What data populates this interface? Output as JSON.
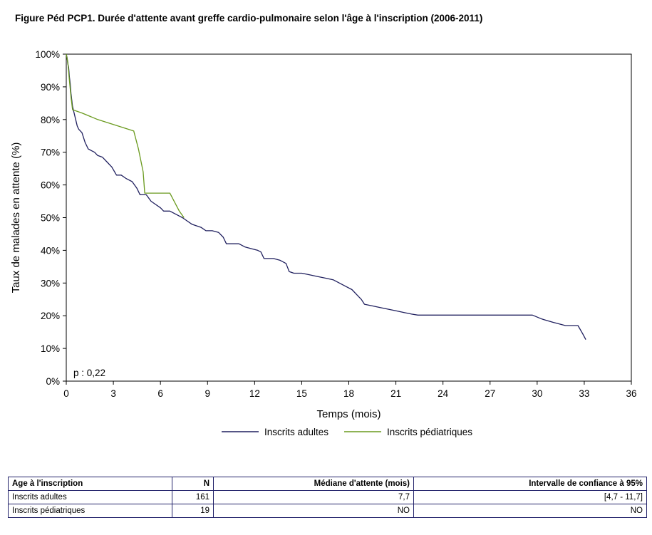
{
  "figure_title": "Figure Péd PCP1. Durée d'attente avant greffe cardio-pulmonaire selon l'âge à l'inscription (2006-2011)",
  "colors": {
    "adults": "#1f1f5e",
    "pediatric": "#6a9a1e",
    "axis": "#000000",
    "table_border": "#22226a"
  },
  "chart_data": {
    "type": "line",
    "title": "",
    "xlabel": "Temps (mois)",
    "ylabel": "Taux de malades en attente (%)",
    "xlim": [
      0,
      36
    ],
    "ylim": [
      0,
      100
    ],
    "x_ticks": [
      0,
      3,
      6,
      9,
      12,
      15,
      18,
      21,
      24,
      27,
      30,
      33,
      36
    ],
    "y_ticks": [
      0,
      10,
      20,
      30,
      40,
      50,
      60,
      70,
      80,
      90,
      100
    ],
    "y_tick_labels": [
      "0%",
      "10%",
      "20%",
      "30%",
      "40%",
      "50%",
      "60%",
      "70%",
      "80%",
      "90%",
      "100%"
    ],
    "annotation": "p : 0,22",
    "legend_position": "bottom",
    "grid": false,
    "series": [
      {
        "name": "Inscrits adultes",
        "points": [
          [
            0,
            100
          ],
          [
            0.05,
            99
          ],
          [
            0.1,
            97
          ],
          [
            0.15,
            96
          ],
          [
            0.2,
            93
          ],
          [
            0.25,
            91
          ],
          [
            0.3,
            88
          ],
          [
            0.35,
            86
          ],
          [
            0.4,
            84
          ],
          [
            0.5,
            82
          ],
          [
            0.6,
            80
          ],
          [
            0.7,
            78
          ],
          [
            0.8,
            77
          ],
          [
            1.0,
            76
          ],
          [
            1.2,
            73
          ],
          [
            1.4,
            71
          ],
          [
            1.6,
            70.5
          ],
          [
            1.8,
            70
          ],
          [
            2.0,
            69
          ],
          [
            2.3,
            68.5
          ],
          [
            2.6,
            67
          ],
          [
            2.9,
            65.5
          ],
          [
            3.2,
            63
          ],
          [
            3.5,
            63
          ],
          [
            3.8,
            62
          ],
          [
            4.2,
            61
          ],
          [
            4.5,
            59
          ],
          [
            4.7,
            57
          ],
          [
            5.1,
            57
          ],
          [
            5.4,
            55
          ],
          [
            5.7,
            54
          ],
          [
            6.0,
            53
          ],
          [
            6.2,
            52
          ],
          [
            6.6,
            52
          ],
          [
            7.0,
            51
          ],
          [
            7.4,
            50
          ],
          [
            7.7,
            49
          ],
          [
            8.0,
            48
          ],
          [
            8.3,
            47.5
          ],
          [
            8.6,
            47
          ],
          [
            8.9,
            46
          ],
          [
            9.3,
            46
          ],
          [
            9.7,
            45.5
          ],
          [
            10.0,
            44
          ],
          [
            10.2,
            42
          ],
          [
            10.6,
            42
          ],
          [
            11.0,
            42
          ],
          [
            11.4,
            41
          ],
          [
            11.8,
            40.5
          ],
          [
            12.2,
            40
          ],
          [
            12.4,
            39.5
          ],
          [
            12.6,
            37.5
          ],
          [
            13.2,
            37.5
          ],
          [
            13.6,
            37
          ],
          [
            14.0,
            36
          ],
          [
            14.2,
            33.5
          ],
          [
            14.5,
            33
          ],
          [
            15.0,
            33
          ],
          [
            15.5,
            32.5
          ],
          [
            16.0,
            32
          ],
          [
            16.5,
            31.5
          ],
          [
            17.0,
            31
          ],
          [
            17.4,
            30
          ],
          [
            17.8,
            29
          ],
          [
            18.2,
            28
          ],
          [
            18.5,
            26.5
          ],
          [
            18.8,
            25
          ],
          [
            19.0,
            23.5
          ],
          [
            19.5,
            23
          ],
          [
            20.0,
            22.5
          ],
          [
            20.5,
            22
          ],
          [
            21.0,
            21.5
          ],
          [
            21.5,
            21
          ],
          [
            22.0,
            20.5
          ],
          [
            22.4,
            20.2
          ],
          [
            25,
            20.2
          ],
          [
            29.7,
            20.2
          ],
          [
            30.3,
            19
          ],
          [
            31.0,
            18
          ],
          [
            31.8,
            17
          ],
          [
            32.6,
            17
          ],
          [
            32.9,
            14.5
          ],
          [
            33.1,
            12.7
          ]
        ]
      },
      {
        "name": "Inscrits pédiatriques",
        "points": [
          [
            0,
            100
          ],
          [
            0.1,
            97.5
          ],
          [
            0.2,
            92
          ],
          [
            0.3,
            87
          ],
          [
            0.4,
            83
          ],
          [
            1.0,
            82
          ],
          [
            2.0,
            80
          ],
          [
            3.0,
            78.5
          ],
          [
            4.3,
            76.5
          ],
          [
            4.6,
            71
          ],
          [
            4.9,
            64
          ],
          [
            5.0,
            57.5
          ],
          [
            5.3,
            57.5
          ],
          [
            6.6,
            57.5
          ],
          [
            7.2,
            52
          ],
          [
            7.5,
            50
          ]
        ]
      }
    ]
  },
  "table": {
    "headers": [
      "Age à l'inscription",
      "N",
      "Médiane d'attente (mois)",
      "Intervalle de confiance à 95%"
    ],
    "rows": [
      [
        "Inscrits adultes",
        "161",
        "7,7",
        "[4,7 - 11,7]"
      ],
      [
        "Inscrits pédiatriques",
        "19",
        "NO",
        "NO"
      ]
    ]
  }
}
